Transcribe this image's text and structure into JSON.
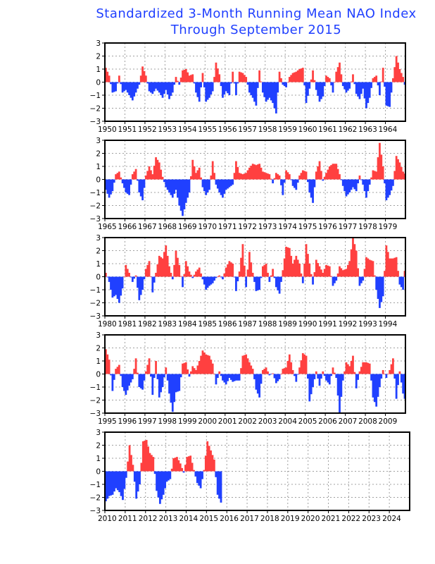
{
  "chart_data": {
    "type": "bar",
    "title": "Standardized 3-Month Running Mean NAO Index",
    "subtitle": "Through September 2015",
    "xlabel": "",
    "ylabel": "",
    "ylim": [
      -3,
      3
    ],
    "yticks": [
      "3",
      "2",
      "1",
      "0",
      "−1",
      "−2",
      "−3"
    ],
    "grid": true,
    "resolution_note": "values approximate, two-month steps per year (Jan-Feb, Mar-Apr, May-Jun, Jul-Aug, Sep-Oct, Nov-Dec)",
    "last_month": "2015-09",
    "panels": [
      {
        "years": [
          "1950",
          "1951",
          "1952",
          "1953",
          "1954",
          "1955",
          "1956",
          "1957",
          "1958",
          "1959",
          "1960",
          "1961",
          "1962",
          "1963",
          "1964"
        ]
      },
      {
        "years": [
          "1965",
          "1966",
          "1967",
          "1968",
          "1969",
          "1970",
          "1971",
          "1972",
          "1973",
          "1974",
          "1975",
          "1976",
          "1977",
          "1978",
          "1979"
        ]
      },
      {
        "years": [
          "1980",
          "1981",
          "1982",
          "1983",
          "1984",
          "1985",
          "1986",
          "1987",
          "1988",
          "1989",
          "1990",
          "1991",
          "1992",
          "1993",
          "1994"
        ]
      },
      {
        "years": [
          "1995",
          "1996",
          "1997",
          "1998",
          "1999",
          "2000",
          "2001",
          "2002",
          "2003",
          "2004",
          "2005",
          "2006",
          "2007",
          "2008",
          "2009"
        ]
      },
      {
        "years": [
          "2010",
          "2011",
          "2012",
          "2013",
          "2014",
          "2015",
          "2016",
          "2017",
          "2018",
          "2019",
          "2020",
          "2021",
          "2022",
          "2023",
          "2024"
        ]
      }
    ],
    "series": {
      "1950": [
        1.1,
        0.5,
        -0.8,
        -0.7,
        0.5,
        -0.8
      ],
      "1951": [
        -0.6,
        -1.0,
        -1.4,
        -0.8,
        -0.2,
        1.2
      ],
      "1952": [
        0.5,
        -0.7,
        -0.9,
        -0.5,
        -0.8,
        -1.2
      ],
      "1953": [
        -0.6,
        -1.3,
        -0.8,
        0.4,
        -0.2,
        0.9
      ],
      "1954": [
        1.0,
        0.5,
        0.6,
        -0.8,
        -1.5,
        0.7
      ],
      "1955": [
        -1.5,
        -1.2,
        -0.7,
        1.5,
        0.6,
        -1.2
      ],
      "1956": [
        -0.7,
        -1.0,
        0.8,
        -1.0,
        0.8,
        0.7
      ],
      "1957": [
        0.4,
        -0.8,
        -1.2,
        -1.8,
        0.9,
        -0.8
      ],
      "1958": [
        -1.5,
        -1.2,
        -1.6,
        -2.4,
        0.8,
        -0.2
      ],
      "1959": [
        -0.4,
        0.4,
        0.7,
        0.8,
        1.0,
        1.1
      ],
      "1960": [
        -1.6,
        -0.5,
        0.9,
        -0.6,
        -1.5,
        -1.1
      ],
      "1961": [
        0.5,
        0.3,
        -0.8,
        0.8,
        1.5,
        -0.3
      ],
      "1962": [
        -0.8,
        -0.5,
        0.6,
        -0.9,
        -1.3,
        -0.5
      ],
      "1963": [
        -2.0,
        -1.2,
        0.3,
        0.5,
        -1.0,
        1.1
      ],
      "1964": [
        -1.8,
        -1.9,
        0.3,
        2.0,
        1.0,
        0.4
      ],
      "1965": [
        -0.8,
        -1.4,
        -0.9,
        0.4,
        0.6,
        -0.3
      ],
      "1966": [
        -1.0,
        -1.2,
        0.4,
        0.8,
        -1.0,
        -1.6
      ],
      "1967": [
        0.3,
        1.0,
        0.4,
        1.7,
        1.3,
        0.2
      ],
      "1968": [
        -0.6,
        -1.0,
        -1.4,
        -0.8,
        -2.0,
        -2.8
      ],
      "1969": [
        -1.8,
        -1.0,
        1.5,
        0.5,
        0.9,
        -0.6
      ],
      "1970": [
        -1.2,
        -0.8,
        1.4,
        -0.4,
        -1.0,
        -1.4
      ],
      "1971": [
        -0.8,
        -0.6,
        -0.4,
        1.4,
        0.5,
        0.4
      ],
      "1972": [
        0.5,
        0.9,
        1.2,
        1.1,
        1.2,
        0.6
      ],
      "1973": [
        0.5,
        0.4,
        -0.3,
        0.5,
        0.3,
        -1.2
      ],
      "1974": [
        0.7,
        0.4,
        -0.5,
        -0.8,
        0.3,
        0.7
      ],
      "1975": [
        0.6,
        -1.0,
        -1.8,
        0.6,
        1.4,
        -0.1
      ],
      "1976": [
        0.5,
        1.0,
        1.2,
        1.2,
        0.4,
        -0.5
      ],
      "1977": [
        -1.3,
        -1.0,
        -0.6,
        -0.9,
        0.3,
        -0.4
      ],
      "1978": [
        -1.4,
        -0.4,
        0.7,
        0.6,
        2.8,
        1.0
      ],
      "1979": [
        -1.6,
        -1.2,
        -0.5,
        1.8,
        1.3,
        0.6
      ],
      "1980": [
        0.3,
        -0.4,
        -1.6,
        -1.4,
        -2.0,
        -0.9
      ],
      "1981": [
        0.9,
        0.3,
        -0.4,
        0.1,
        -1.8,
        -1.0
      ],
      "1982": [
        0.6,
        1.2,
        -1.2,
        0.3,
        1.6,
        1.4
      ],
      "1983": [
        2.4,
        0.8,
        -0.2,
        2.0,
        0.9,
        -0.8
      ],
      "1984": [
        1.2,
        0.4,
        -0.1,
        0.4,
        0.7,
        -0.2
      ],
      "1985": [
        -1.0,
        -0.7,
        -0.5,
        -0.1,
        0.1,
        -0.2
      ],
      "1986": [
        0.7,
        1.2,
        1.0,
        -1.1,
        0.4,
        2.5
      ],
      "1987": [
        -0.8,
        1.9,
        0.3,
        -1.1,
        -1.0,
        0.8
      ],
      "1988": [
        1.0,
        -0.4,
        0.6,
        -0.8,
        -1.3,
        0.5
      ],
      "1989": [
        2.3,
        2.2,
        1.0,
        1.6,
        1.0,
        -0.5
      ],
      "1990": [
        2.5,
        1.0,
        -0.6,
        1.3,
        0.8,
        0.3
      ],
      "1991": [
        0.9,
        0.8,
        -0.7,
        -0.3,
        0.8,
        0.5
      ],
      "1992": [
        0.6,
        1.2,
        3.0,
        2.0,
        -0.7,
        -0.3
      ],
      "1993": [
        1.5,
        1.3,
        1.2,
        -1.0,
        -2.4,
        -1.5
      ],
      "1994": [
        2.4,
        1.4,
        1.4,
        1.5,
        -0.6,
        -1.0
      ],
      "1995": [
        1.9,
        1.1,
        -1.3,
        0.4,
        0.7,
        -1.0
      ],
      "1996": [
        -1.6,
        -0.9,
        -0.4,
        1.2,
        -1.0,
        -1.2
      ],
      "1997": [
        0.2,
        1.2,
        -1.6,
        1.0,
        -1.8,
        -1.0
      ],
      "1998": [
        0.5,
        -1.5,
        -2.9,
        -1.4,
        -1.3,
        0.8
      ],
      "1999": [
        0.9,
        -0.2,
        0.6,
        0.3,
        1.0,
        1.8
      ],
      "2000": [
        1.5,
        1.4,
        0.8,
        -0.8,
        0.2,
        -0.5
      ],
      "2001": [
        -0.8,
        -0.3,
        -0.6,
        -0.5,
        -0.5,
        1.4
      ],
      "2002": [
        1.5,
        0.9,
        0.4,
        -1.2,
        -1.8,
        0.3
      ],
      "2003": [
        0.5,
        -0.1,
        0.05,
        -0.7,
        -0.4,
        0.4
      ],
      "2004": [
        0.5,
        1.5,
        0.3,
        -0.6,
        0.5,
        1.6
      ],
      "2005": [
        1.4,
        -2.1,
        -1.0,
        0.2,
        -0.9,
        0.2
      ],
      "2006": [
        -0.5,
        -0.8,
        0.5,
        -0.3,
        -3.0,
        -0.5
      ],
      "2007": [
        0.9,
        0.6,
        1.4,
        -1.1,
        0.2,
        0.9
      ],
      "2008": [
        0.9,
        0.8,
        -1.8,
        -2.5,
        -1.0,
        0.3
      ],
      "2009": [
        -0.3,
        0.3,
        1.2,
        -1.9,
        0.2,
        -1.5
      ],
      "2010": [
        -2.3,
        -1.9,
        -1.8,
        -1.3,
        -1.6,
        -2.2
      ],
      "2011": [
        -0.5,
        2.0,
        0.5,
        -2.1,
        -1.0,
        2.3
      ],
      "2012": [
        2.4,
        1.4,
        1.1,
        -1.5,
        -2.5,
        -1.8
      ],
      "2013": [
        -0.8,
        -0.6,
        1.0,
        1.1,
        0.6,
        -0.1
      ],
      "2014": [
        1.1,
        1.2,
        0.1,
        -0.9,
        -1.3,
        0.1
      ],
      "2015": [
        2.3,
        1.6,
        0.9,
        -1.8,
        -2.4
      ]
    },
    "colors": {
      "positive": "#ff4040",
      "negative": "#2040ff",
      "title": "#2040ff",
      "grid": "#a0a0a0"
    }
  }
}
